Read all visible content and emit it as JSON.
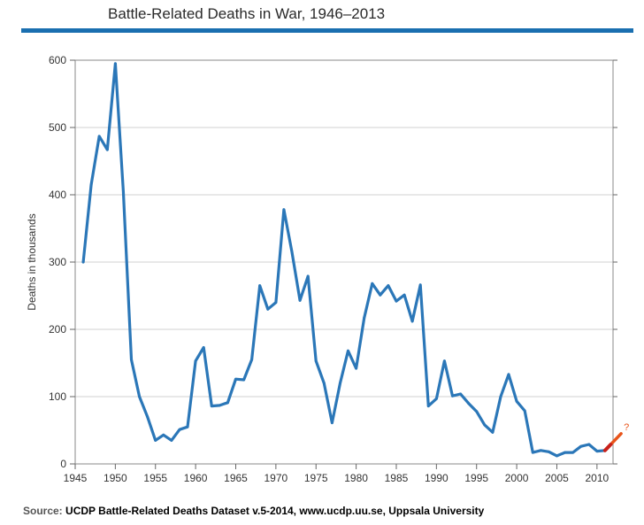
{
  "header": {
    "title": "Battle-Related Deaths in War, 1946–2013"
  },
  "footer": {
    "source_label": "Source:",
    "source_text": "UCDP Battle-Related Deaths Dataset v.5-2014, www.ucdp.uu.se, Uppsala University"
  },
  "chart_data": {
    "type": "line",
    "title": "Battle-Related Deaths in War, 1946–2013",
    "xlabel": "",
    "ylabel": "Deaths in thousands",
    "xlim": [
      1945,
      2012
    ],
    "ylim": [
      0,
      600
    ],
    "xticks": [
      1945,
      1950,
      1955,
      1960,
      1965,
      1970,
      1975,
      1980,
      1985,
      1990,
      1995,
      2000,
      2005,
      2010
    ],
    "yticks": [
      0,
      100,
      200,
      300,
      400,
      500,
      600
    ],
    "grid": true,
    "line_color": "#2b77b8",
    "series": [
      {
        "x": [
          1946,
          1947,
          1948,
          1949,
          1950,
          1951,
          1952,
          1953,
          1954,
          1955,
          1956,
          1957,
          1958,
          1959,
          1960,
          1961,
          1962,
          1963,
          1964,
          1965,
          1966,
          1967,
          1968,
          1969,
          1970,
          1971,
          1972,
          1973,
          1974,
          1975,
          1976,
          1977,
          1978,
          1979,
          1980,
          1981,
          1982,
          1983,
          1984,
          1985,
          1986,
          1987,
          1988,
          1989,
          1990,
          1991,
          1992,
          1993,
          1994,
          1995,
          1996,
          1997,
          1998,
          1999,
          2000,
          2001,
          2002,
          2003,
          2004,
          2005,
          2006,
          2007,
          2008,
          2009,
          2010,
          2011
        ],
        "values": [
          300,
          415,
          487,
          467,
          595,
          405,
          155,
          100,
          70,
          35,
          43,
          35,
          51,
          55,
          153,
          173,
          86,
          87,
          91,
          126,
          125,
          155,
          265,
          230,
          240,
          378,
          315,
          243,
          279,
          153,
          120,
          61,
          120,
          168,
          142,
          217,
          268,
          251,
          265,
          242,
          251,
          212,
          266,
          86,
          97,
          153,
          101,
          104,
          90,
          78,
          58,
          47,
          100,
          133,
          93,
          79,
          17,
          20,
          18,
          12,
          17,
          17,
          26,
          29,
          19,
          20
        ]
      }
    ],
    "annotation": {
      "x": [
        2011,
        2013
      ],
      "values": [
        20,
        45
      ],
      "color": "#e8541a",
      "tip_color": "#c8201a",
      "mark": "?"
    }
  }
}
